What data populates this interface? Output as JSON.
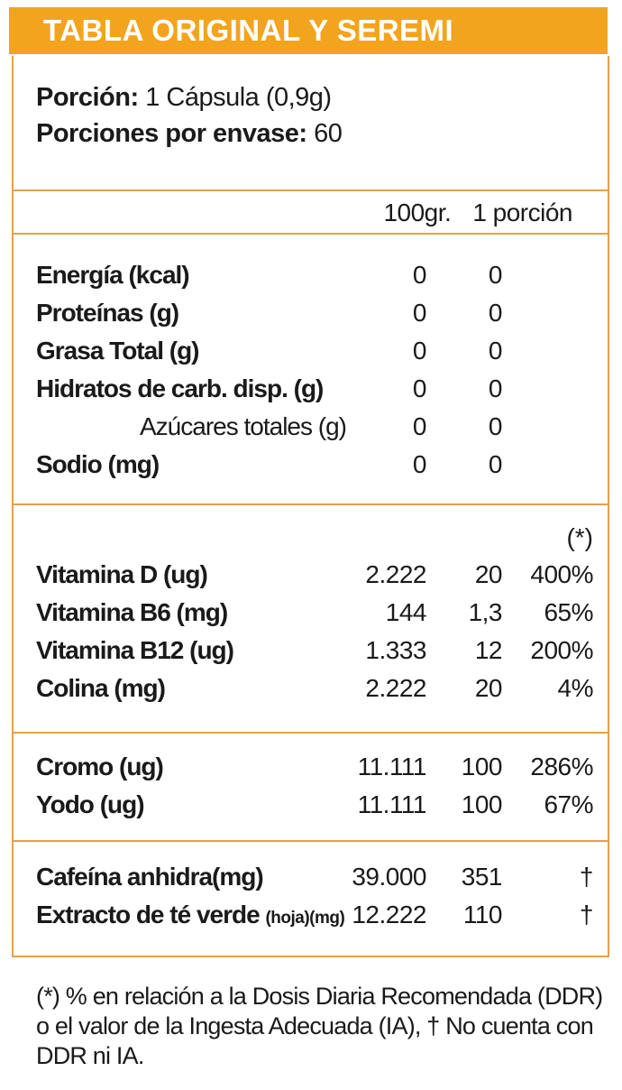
{
  "colors": {
    "accent": "#F2A41E",
    "line": "#E89E4C"
  },
  "header": {
    "title": "TABLA ORIGINAL Y SEREMI"
  },
  "serving": {
    "portion": {
      "label": "Porción:",
      "value": "1 Cápsula (0,9g)"
    },
    "servings_per_container": {
      "label": "Porciones por envase:",
      "value": "60"
    }
  },
  "table": {
    "column_headers": {
      "per_100g": "100gr.",
      "per_portion": "1 porción",
      "daily_value_marker": "(*)"
    },
    "macros": {
      "rows": [
        {
          "label": "Energía (kcal)",
          "per100": "0",
          "portion": "0"
        },
        {
          "label": "Proteínas (g)",
          "per100": "0",
          "portion": "0"
        },
        {
          "label": "Grasa Total (g)",
          "per100": "0",
          "portion": "0"
        },
        {
          "label": "Hidratos de carb. disp. (g)",
          "per100": "0",
          "portion": "0"
        },
        {
          "label": "Azúcares totales (g)",
          "per100": "0",
          "portion": "0"
        },
        {
          "label": "Sodio (mg)",
          "per100": "0",
          "portion": "0"
        }
      ]
    },
    "vitamins": {
      "rows": [
        {
          "label": "Vitamina D (ug)",
          "per100": "2.222",
          "portion": "20",
          "dv": "400%"
        },
        {
          "label": "Vitamina B6 (mg)",
          "per100": "144",
          "portion": "1,3",
          "dv": "65%"
        },
        {
          "label": "Vitamina B12 (ug)",
          "per100": "1.333",
          "portion": "12",
          "dv": "200%"
        },
        {
          "label": "Colina (mg)",
          "per100": "2.222",
          "portion": "20",
          "dv": "4%"
        }
      ]
    },
    "minerals": {
      "rows": [
        {
          "label": "Cromo (ug)",
          "per100": "11.111",
          "portion": "100",
          "dv": "286%"
        },
        {
          "label": "Yodo (ug)",
          "per100": "11.111",
          "portion": "100",
          "dv": "67%"
        }
      ]
    },
    "others": {
      "rows": [
        {
          "label": "Cafeína anhidra(mg)",
          "per100": "39.000",
          "portion": "351",
          "dv": "†"
        },
        {
          "label": "Extracto de té verde",
          "label_small": "(hoja)(mg)",
          "per100": "12.222",
          "portion": "110",
          "dv": "†"
        }
      ]
    }
  },
  "footnote": {
    "lines": [
      "(*) % en relación a la Dosis Diaria Recomendada (DDR)",
      "o el valor de la Ingesta Adecuada (IA), † No cuenta con",
      "DDR ni IA."
    ]
  }
}
